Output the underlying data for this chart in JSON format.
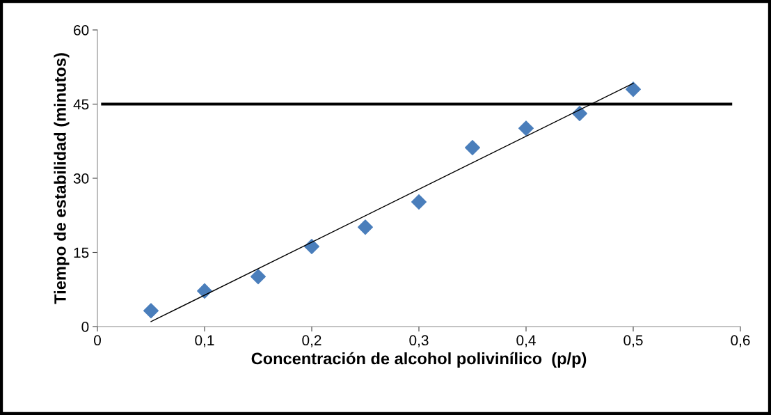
{
  "chart_data": {
    "type": "scatter",
    "xlabel": "Concentración de alcohol polivinílico  (p/p)",
    "ylabel": "Tiempo de estabilidad (minutos)",
    "x": [
      0.05,
      0.1,
      0.15,
      0.2,
      0.25,
      0.3,
      0.35,
      0.4,
      0.45,
      0.5
    ],
    "series": [
      {
        "color": "#4a7ebb",
        "marker": "diamond",
        "values": [
          3.2,
          7.2,
          10.1,
          16.2,
          20.1,
          25.2,
          36.2,
          40.1,
          43.1,
          48
        ]
      },
      {
        "type": "line",
        "color": "#000000",
        "marker": "none",
        "x": [
          0.05,
          0.5
        ],
        "values": [
          1.0,
          49.2
        ]
      }
    ],
    "ref_lines": [
      {
        "axis": "y",
        "value": 45,
        "color": "#000000"
      }
    ],
    "xlim": [
      0,
      0.6
    ],
    "xticks": [
      0,
      {
        "value": 0.1,
        "label": "0,1"
      },
      {
        "value": 0.2,
        "label": "0,2"
      },
      {
        "value": 0.3,
        "label": "0,3"
      },
      {
        "value": 0.4,
        "label": "0,4"
      },
      {
        "value": 0.5,
        "label": "0,5"
      },
      {
        "value": 0.6,
        "label": "0,6"
      }
    ],
    "ylim": [
      0,
      60
    ],
    "yticks": [
      0,
      15,
      30,
      45,
      60
    ],
    "grid": false,
    "legend": false
  }
}
